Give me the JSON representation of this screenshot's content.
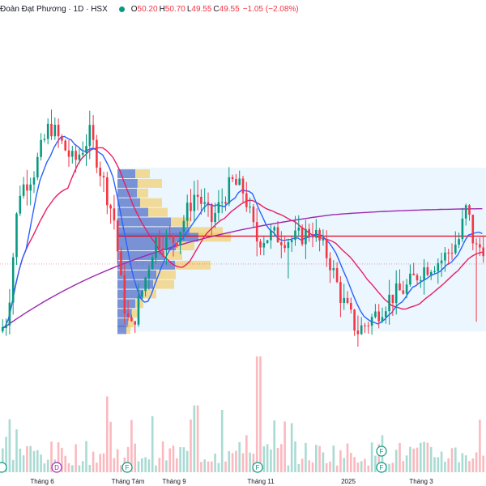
{
  "legend": {
    "symbol": "Đoàn Đạt Phương · 1D · HSX",
    "market_status_color": "#089981",
    "open_label": "O",
    "open": "50.20",
    "high_label": "H",
    "high": "50.70",
    "low_label": "L",
    "low": "49.55",
    "close_label": "C",
    "close": "49.55",
    "change": "−1.05 (−2.08%)"
  },
  "colors": {
    "up": "#089981",
    "down": "#f23645",
    "ma_fast": "#2962ff",
    "ma_mid": "#e91e63",
    "ma_slow": "#9c27b0",
    "poc_line": "#e8001c",
    "vp_up": "#2962ff",
    "vp_down": "#f5c244",
    "value_area_bg": "#e3f2fd"
  },
  "chart_data": {
    "type": "candlestick",
    "x_ticks": [
      "Tháng 6",
      "Tháng Tám",
      "Tháng 9",
      "Tháng 11",
      "2025",
      "Tháng 3"
    ],
    "price": {
      "description_points": "approximate closing price per x-tick region",
      "ohlc_samples": [
        {
          "period": "Tháng 6 start",
          "close": 40.5
        },
        {
          "period": "Tháng 6",
          "close": 57.0
        },
        {
          "period": "Tháng 6 peak",
          "close": 63.0
        },
        {
          "period": "Tháng Tám",
          "close": 52.0
        },
        {
          "period": "Tháng Tám low",
          "close": 40.0
        },
        {
          "period": "Tháng 9",
          "close": 53.0
        },
        {
          "period": "Tháng 9 high",
          "close": 57.0
        },
        {
          "period": "Tháng 11",
          "close": 50.0
        },
        {
          "period": "2025 low",
          "close": 40.5
        },
        {
          "period": "Tháng 3",
          "close": 48.0
        },
        {
          "period": "Tháng 3 high",
          "close": 53.5
        },
        {
          "period": "last",
          "close": 49.55
        }
      ]
    },
    "moving_averages": [
      {
        "name": "",
        "color": "#2962ff"
      },
      {
        "name": "",
        "color": "#e91e63"
      },
      {
        "name": "",
        "color": "#9c27b0"
      }
    ],
    "volume_profile": {
      "poc_price": 50.4
    },
    "event_markers": [
      {
        "label": "D",
        "near": "Tháng 6"
      },
      {
        "label": "F",
        "near": "Tháng Tám"
      },
      {
        "label": "F",
        "near": "Tháng 11"
      },
      {
        "label": "F",
        "near": "2025"
      },
      {
        "label": "F",
        "near": "2025"
      }
    ]
  }
}
